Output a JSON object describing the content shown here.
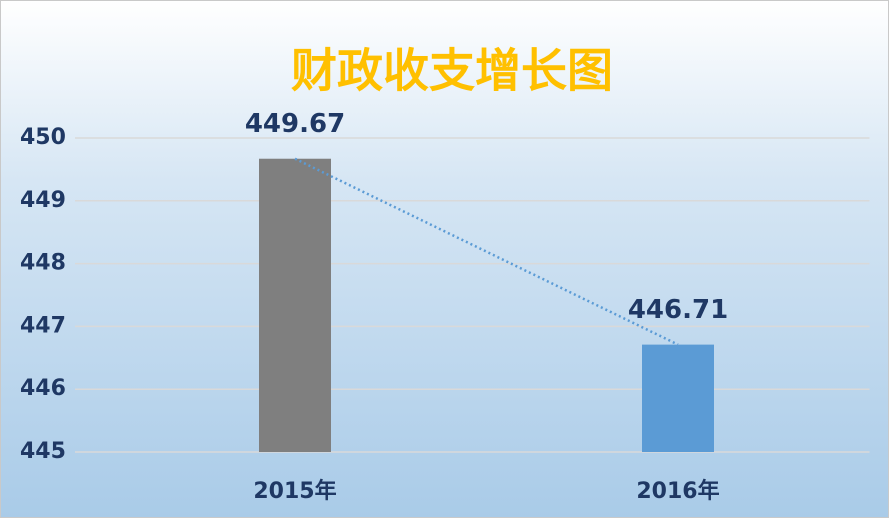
{
  "chart_data": {
    "type": "bar",
    "title": "财政收支增长图",
    "categories": [
      "2015年",
      "2016年"
    ],
    "values": [
      449.67,
      446.71
    ],
    "colors": [
      "#7f7f7f",
      "#5b9bd5"
    ],
    "ylim": [
      445,
      450
    ],
    "yticks": [
      445,
      446,
      447,
      448,
      449,
      450
    ],
    "grid": true,
    "trendline": true
  }
}
